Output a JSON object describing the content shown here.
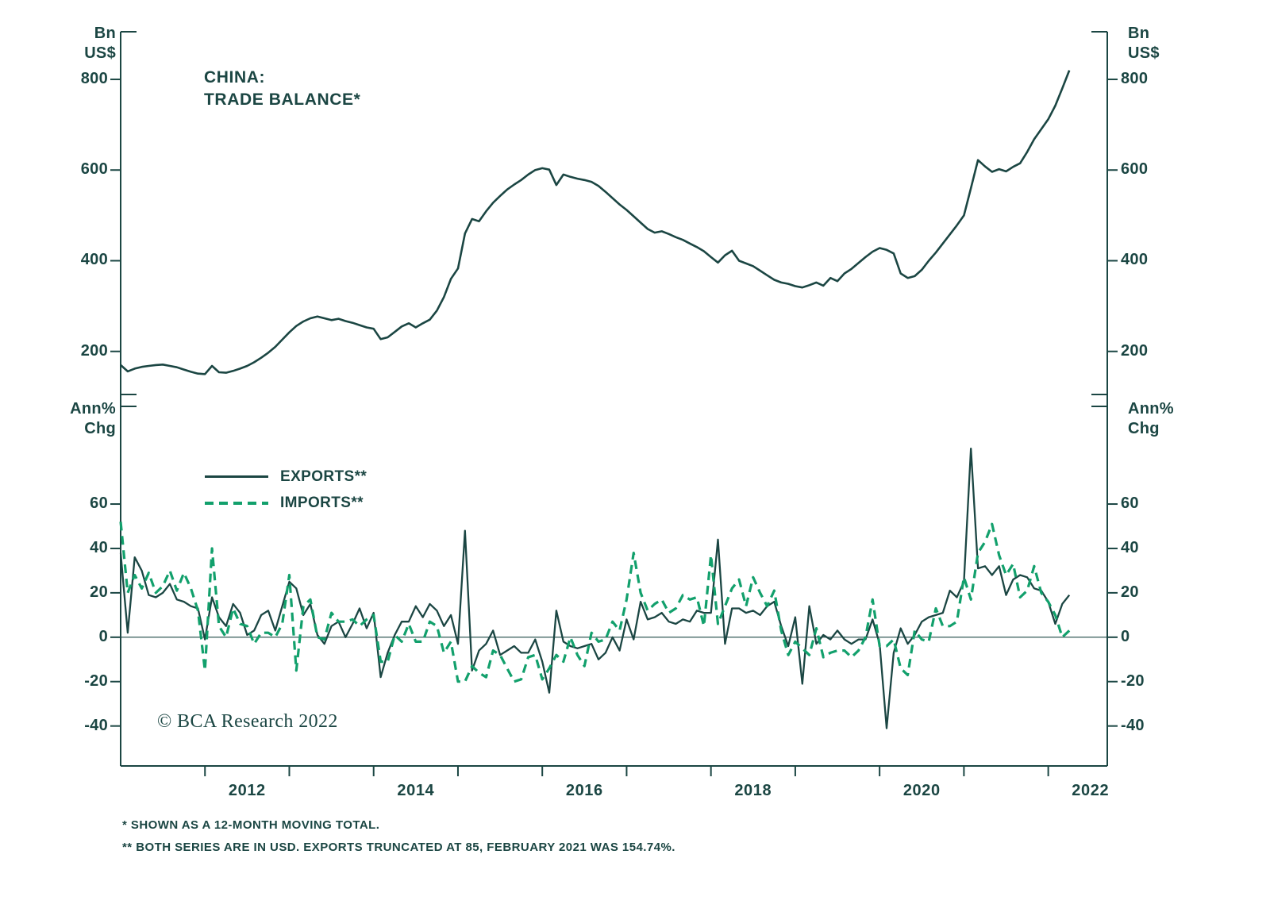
{
  "theme": {
    "ink": "#1b4643",
    "green": "#12a06c",
    "background": "#ffffff"
  },
  "header": {
    "title_lines": [
      "CHINA:",
      "TRADE BALANCE*"
    ]
  },
  "top_panel": {
    "unit_lines": [
      "Bn",
      "US$"
    ]
  },
  "bottom_panel": {
    "unit_lines": [
      "Ann%",
      "Chg"
    ]
  },
  "legend": {
    "items": [
      {
        "label": "EXPORTS**"
      },
      {
        "label": "IMPORTS**"
      }
    ]
  },
  "copyright": "© BCA Research 2022",
  "footnotes": [
    "*  SHOWN AS A 12-MONTH MOVING TOTAL.",
    "** BOTH SERIES ARE IN USD. EXPORTS TRUNCATED AT 85, FEBRUARY 2021 WAS 154.74%."
  ],
  "x_axis": {
    "tick_years": [
      2012,
      2013,
      2014,
      2015,
      2016,
      2017,
      2018,
      2019,
      2020,
      2021,
      2022
    ],
    "labels": [
      {
        "text": "2012",
        "center": 2012.5
      },
      {
        "text": "2014",
        "center": 2014.5
      },
      {
        "text": "2016",
        "center": 2016.5
      },
      {
        "text": "2018",
        "center": 2018.5
      },
      {
        "text": "2020",
        "center": 2020.5
      },
      {
        "text": "2022",
        "center": 2022.5
      }
    ]
  },
  "chart_data": [
    {
      "type": "line",
      "panel": "top",
      "title": "CHINA: TRADE BALANCE*",
      "ylabel": "Bn US$",
      "x_start": 2011.0,
      "x_step_years": 0.0833,
      "xlim": [
        2011.0,
        2022.7
      ],
      "ylim": [
        105,
        905
      ],
      "yticks": [
        200,
        400,
        600,
        800
      ],
      "grid": false,
      "series": [
        {
          "name": "TRADE BALANCE (12-month moving total, Bn US$)",
          "color": "#1b4643",
          "style": "solid",
          "values": [
            170,
            156,
            162,
            166,
            168,
            170,
            171,
            168,
            165,
            160,
            155,
            151,
            150,
            168,
            154,
            153,
            157,
            162,
            168,
            176,
            186,
            197,
            210,
            226,
            242,
            256,
            266,
            273,
            277,
            273,
            269,
            272,
            267,
            263,
            258,
            253,
            250,
            227,
            231,
            243,
            255,
            262,
            253,
            262,
            270,
            290,
            320,
            360,
            383,
            460,
            492,
            487,
            509,
            528,
            543,
            557,
            568,
            578,
            590,
            600,
            604,
            601,
            567,
            590,
            585,
            581,
            578,
            574,
            565,
            552,
            538,
            524,
            512,
            498,
            484,
            470,
            462,
            465,
            459,
            452,
            446,
            438,
            430,
            421,
            408,
            396,
            412,
            422,
            400,
            394,
            388,
            378,
            368,
            358,
            352,
            349,
            344,
            341,
            346,
            352,
            345,
            362,
            355,
            372,
            382,
            395,
            408,
            420,
            428,
            424,
            416,
            372,
            362,
            366,
            380,
            400,
            418,
            438,
            458,
            478,
            500,
            560,
            622,
            608,
            596,
            602,
            597,
            607,
            615,
            640,
            668,
            690,
            712,
            742,
            780,
            820
          ]
        }
      ]
    },
    {
      "type": "line",
      "panel": "bottom",
      "ylabel": "Ann% Chg",
      "x_start": 2011.0,
      "x_step_years": 0.0833,
      "xlim": [
        2011.0,
        2022.7
      ],
      "ylim": [
        -58,
        104
      ],
      "yticks": [
        -40,
        -20,
        0,
        20,
        40,
        60
      ],
      "zero_line": true,
      "grid": false,
      "legend_position": "upper-left",
      "series": [
        {
          "name": "EXPORTS**",
          "color": "#1b4643",
          "style": "solid",
          "values": [
            38,
            2,
            36,
            30,
            19,
            18,
            20,
            24,
            17,
            16,
            14,
            13,
            -1,
            18,
            9,
            5,
            15,
            11,
            1,
            3,
            10,
            12,
            3,
            14,
            25,
            22,
            10,
            15,
            1,
            -3,
            5,
            7,
            0,
            6,
            13,
            4,
            11,
            -18,
            -7,
            1,
            7,
            7,
            14,
            9,
            15,
            12,
            5,
            10,
            -3,
            48,
            -15,
            -6,
            -3,
            3,
            -8,
            -6,
            -4,
            -7,
            -7,
            -1,
            -11,
            -25,
            12,
            -2,
            -4,
            -5,
            -4,
            -3,
            -10,
            -7,
            0,
            -6,
            8,
            -1,
            16,
            8,
            9,
            11,
            7,
            6,
            8,
            7,
            12,
            11,
            11,
            44,
            -3,
            13,
            13,
            11,
            12,
            10,
            14,
            16,
            5,
            -4,
            9,
            -21,
            14,
            -3,
            1,
            -1,
            3,
            -1,
            -3,
            -1,
            -1,
            8,
            -3,
            -41,
            -7,
            4,
            -3,
            1,
            7,
            9,
            10,
            11,
            21,
            18,
            25,
            85,
            31,
            32,
            28,
            32,
            19,
            26,
            28,
            27,
            22,
            21,
            16,
            6,
            15,
            19
          ]
        },
        {
          "name": "IMPORTS**",
          "color": "#12a06c",
          "style": "dashed",
          "values": [
            52,
            20,
            28,
            22,
            29,
            20,
            23,
            30,
            21,
            29,
            22,
            12,
            -15,
            40,
            5,
            0,
            13,
            6,
            5,
            -3,
            2,
            2,
            0,
            6,
            28,
            -15,
            14,
            17,
            0,
            -1,
            11,
            7,
            7,
            8,
            5,
            8,
            10,
            -11,
            -11,
            1,
            -2,
            6,
            -2,
            -2,
            7,
            5,
            -7,
            -2,
            -20,
            -20,
            -13,
            -16,
            -18,
            -6,
            -8,
            -14,
            -20,
            -19,
            -9,
            -8,
            -19,
            -14,
            -8,
            -11,
            0,
            -8,
            -13,
            2,
            -2,
            -1,
            7,
            3,
            17,
            38,
            20,
            12,
            15,
            17,
            11,
            13,
            19,
            17,
            18,
            5,
            37,
            6,
            14,
            22,
            26,
            14,
            27,
            20,
            14,
            21,
            3,
            -8,
            -2,
            -5,
            -8,
            4,
            -9,
            -7,
            -6,
            -6,
            -9,
            -6,
            0,
            17,
            -4,
            -4,
            -1,
            -14,
            -17,
            3,
            -1,
            -2,
            13,
            5,
            5,
            7,
            27,
            17,
            38,
            43,
            51,
            37,
            28,
            33,
            18,
            21,
            32,
            20,
            16,
            10,
            0,
            3
          ]
        }
      ]
    }
  ]
}
